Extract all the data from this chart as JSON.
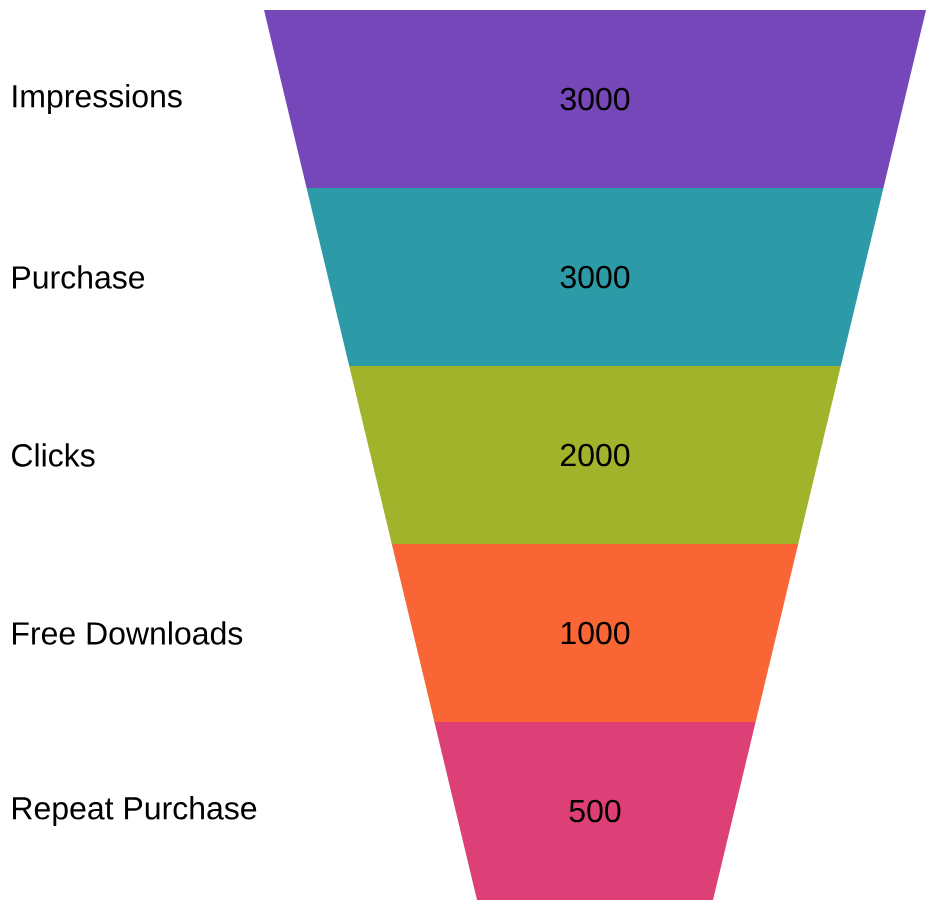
{
  "chart_data": {
    "type": "other",
    "categories": [
      "Impressions",
      "Purchase",
      "Clicks",
      "Free Downloads",
      "Repeat Purchase"
    ],
    "values": [
      3000,
      3000,
      2000,
      1000,
      500
    ],
    "colors": [
      "#7647b9",
      "#2d9ba7",
      "#a1b32b",
      "#f96534",
      "#dc4077"
    ],
    "data_labels": true
  }
}
